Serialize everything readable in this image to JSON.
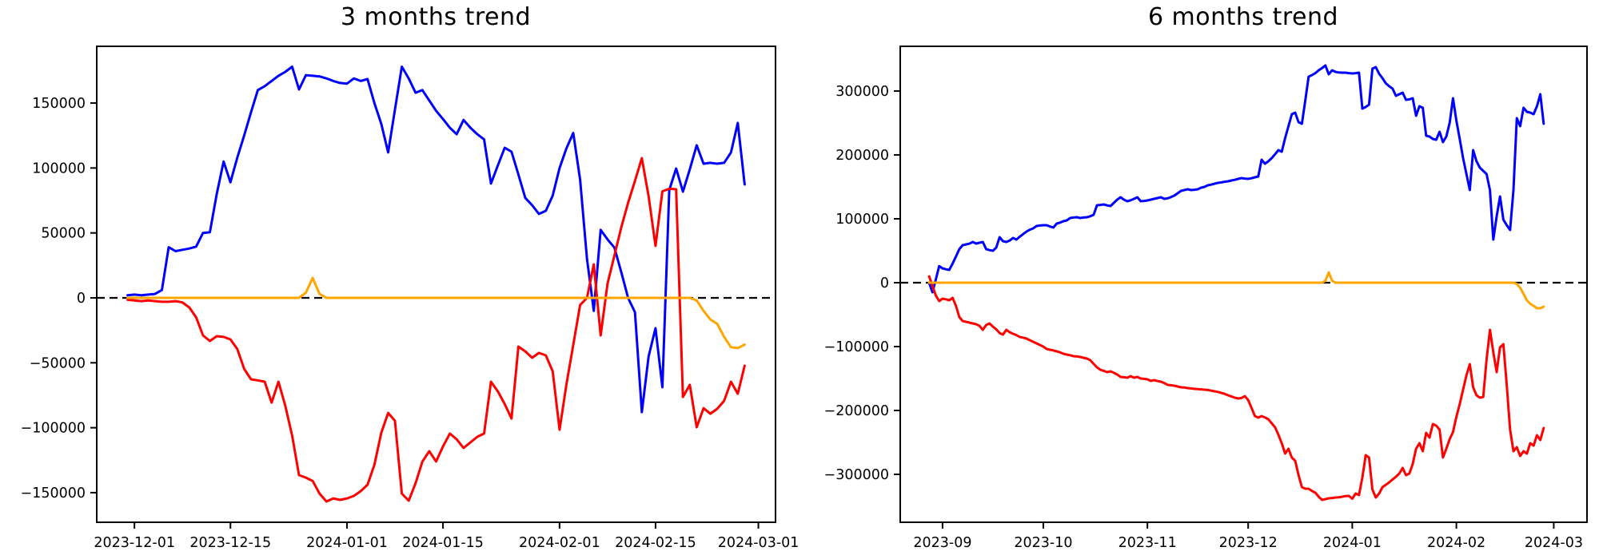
{
  "figure": {
    "background": "#ffffff"
  },
  "chart_data": [
    {
      "title": "3 months trend",
      "type": "line",
      "start_date": "2023-11-30",
      "points_interval_days": 1,
      "grid": false,
      "legend": "none",
      "zero_line": {
        "show": true,
        "color": "#000000",
        "style": "dashed"
      },
      "xlim_days": [
        -4.5,
        94.5
      ],
      "ylim": [
        -172800,
        193700
      ],
      "x_ticks": [
        {
          "label": "2023-12-01",
          "day": 1
        },
        {
          "label": "2023-12-15",
          "day": 15
        },
        {
          "label": "2024-01-01",
          "day": 32
        },
        {
          "label": "2024-01-15",
          "day": 46
        },
        {
          "label": "2024-02-01",
          "day": 63
        },
        {
          "label": "2024-02-15",
          "day": 77
        },
        {
          "label": "2024-03-01",
          "day": 92
        }
      ],
      "y_ticks": [
        {
          "label": "150000",
          "value": 150000
        },
        {
          "label": "100000",
          "value": 100000
        },
        {
          "label": "50000",
          "value": 50000
        },
        {
          "label": "0",
          "value": 0
        },
        {
          "label": "−50000",
          "value": -50000
        },
        {
          "label": "−100000",
          "value": -100000
        },
        {
          "label": "−150000",
          "value": -150000
        }
      ],
      "series": [
        {
          "name": "blue-line",
          "color": "#0000ff",
          "values": [
            2000,
            2500,
            2000,
            2500,
            3000,
            6000,
            39000,
            36000,
            37000,
            38000,
            39500,
            50000,
            50500,
            80000,
            105000,
            89000,
            108000,
            125000,
            143000,
            160000,
            163000,
            167000,
            171000,
            174000,
            178000,
            160500,
            171500,
            171000,
            170500,
            169000,
            167000,
            165500,
            165000,
            169000,
            167000,
            168500,
            150000,
            134000,
            112000,
            145000,
            178000,
            169000,
            158000,
            160000,
            152000,
            144000,
            137700,
            131000,
            126000,
            137000,
            131000,
            126000,
            122000,
            88000,
            102000,
            115600,
            112500,
            95000,
            77000,
            71300,
            64600,
            67000,
            78700,
            100000,
            115000,
            127000,
            91000,
            30000,
            -10000,
            52300,
            45000,
            38700,
            20000,
            0,
            -11100,
            -88000,
            -45000,
            -23400,
            -68900,
            83000,
            99600,
            81800,
            99000,
            117500,
            103300,
            104000,
            103300,
            104000,
            112000,
            134700,
            87300
          ]
        },
        {
          "name": "red-line",
          "color": "#ff0000",
          "values": [
            -1500,
            -2000,
            -2500,
            -2000,
            -2500,
            -3000,
            -3000,
            -2500,
            -3500,
            -7400,
            -15000,
            -28900,
            -33200,
            -29500,
            -30100,
            -32000,
            -39400,
            -54700,
            -62700,
            -63500,
            -64600,
            -80600,
            -64600,
            -83000,
            -106000,
            -136500,
            -138400,
            -141000,
            -150700,
            -156800,
            -154400,
            -155600,
            -154400,
            -152500,
            -148800,
            -143900,
            -128500,
            -103900,
            -88600,
            -94700,
            -150700,
            -156200,
            -142700,
            -126100,
            -118100,
            -126000,
            -114400,
            -104500,
            -108900,
            -115600,
            -111300,
            -107000,
            -104500,
            -64600,
            -72000,
            -81800,
            -92900,
            -37500,
            -41200,
            -46100,
            -42400,
            -44300,
            -56600,
            -101500,
            -67000,
            -36300,
            -5500,
            0,
            25800,
            -28900,
            11000,
            32600,
            54100,
            73200,
            90000,
            107600,
            78100,
            40000,
            82000,
            84000,
            83600,
            -76300,
            -67000,
            -99600,
            -85000,
            -89200,
            -85400,
            -79300,
            -64600,
            -73800,
            -52300
          ]
        },
        {
          "name": "orange-line",
          "color": "#ffa500",
          "values": [
            0,
            0,
            0,
            0,
            0,
            0,
            0,
            0,
            0,
            0,
            0,
            0,
            0,
            0,
            0,
            0,
            0,
            0,
            0,
            0,
            0,
            0,
            0,
            0,
            0,
            0,
            4000,
            15400,
            3000,
            0,
            0,
            0,
            0,
            0,
            0,
            0,
            0,
            0,
            0,
            0,
            0,
            0,
            0,
            0,
            0,
            0,
            0,
            0,
            0,
            0,
            0,
            0,
            0,
            0,
            0,
            0,
            0,
            0,
            0,
            0,
            0,
            0,
            0,
            0,
            0,
            0,
            0,
            0,
            0,
            0,
            0,
            0,
            0,
            0,
            0,
            0,
            0,
            0,
            0,
            0,
            0,
            0,
            0,
            -2000,
            -10000,
            -16600,
            -20000,
            -30000,
            -38000,
            -38700,
            -36000
          ]
        }
      ]
    },
    {
      "title": "6 months trend",
      "type": "line",
      "start_date": "2023-08-28",
      "points_interval_days": 1,
      "grid": false,
      "legend": "none",
      "zero_line": {
        "show": true,
        "color": "#000000",
        "style": "dashed"
      },
      "xlim_days": [
        -8.6,
        195.9
      ],
      "ylim": [
        -375000,
        370000
      ],
      "x_ticks": [
        {
          "label": "2023-09",
          "day": 4
        },
        {
          "label": "2023-10",
          "day": 34
        },
        {
          "label": "2023-11",
          "day": 65
        },
        {
          "label": "2023-12",
          "day": 95
        },
        {
          "label": "2024-01",
          "day": 126
        },
        {
          "label": "2024-02",
          "day": 157
        },
        {
          "label": "2024-03",
          "day": 186
        }
      ],
      "y_ticks": [
        {
          "label": "300000",
          "value": 300000
        },
        {
          "label": "200000",
          "value": 200000
        },
        {
          "label": "100000",
          "value": 100000
        },
        {
          "label": "0",
          "value": 0
        },
        {
          "label": "−100000",
          "value": -100000
        },
        {
          "label": "−200000",
          "value": -200000
        },
        {
          "label": "−300000",
          "value": -300000
        }
      ],
      "series": [
        {
          "name": "blue-line",
          "color": "#0000ff",
          "values": [
            0,
            -15000,
            5000,
            26000,
            22500,
            21000,
            20000,
            30000,
            41000,
            52500,
            58750,
            60000,
            61000,
            63750,
            61250,
            62500,
            63750,
            52500,
            51000,
            50000,
            55000,
            71250,
            65000,
            63750,
            66000,
            70000,
            67500,
            72000,
            76000,
            80000,
            83000,
            85000,
            88750,
            89500,
            90000,
            90000,
            88000,
            86250,
            92500,
            94000,
            96250,
            97500,
            101250,
            102000,
            102500,
            101250,
            102000,
            102500,
            104000,
            106250,
            121250,
            121800,
            122500,
            121000,
            120000,
            125000,
            130000,
            133750,
            130000,
            127500,
            129000,
            131250,
            133750,
            127500,
            128000,
            128750,
            130000,
            131250,
            132500,
            133750,
            131250,
            132000,
            134000,
            136250,
            140000,
            143750,
            145000,
            146250,
            145000,
            145500,
            146250,
            148750,
            150000,
            152500,
            153500,
            155000,
            156250,
            157000,
            158000,
            158750,
            160000,
            161000,
            162500,
            163750,
            163000,
            162500,
            163500,
            165000,
            166250,
            192500,
            186250,
            190000,
            195000,
            201000,
            207500,
            205000,
            226250,
            245000,
            263750,
            266250,
            251250,
            248750,
            285000,
            322500,
            325000,
            328000,
            332500,
            336000,
            340000,
            326250,
            332500,
            330000,
            329000,
            328750,
            328750,
            328000,
            327500,
            328000,
            328750,
            272500,
            275000,
            278750,
            335000,
            337500,
            327000,
            320000,
            312000,
            307500,
            303750,
            292500,
            295000,
            297500,
            286250,
            287000,
            288750,
            261250,
            276250,
            273750,
            230000,
            228750,
            225000,
            223750,
            236250,
            220000,
            228750,
            250000,
            288750,
            253750,
            225000,
            195000,
            170000,
            145000,
            207500,
            190000,
            180000,
            175000,
            170000,
            145000,
            67500,
            103750,
            135000,
            98750,
            90000,
            82500,
            145000,
            257500,
            245000,
            273750,
            267500,
            266250,
            263750,
            276250,
            295000,
            248750
          ]
        },
        {
          "name": "red-line",
          "color": "#ff0000",
          "values": [
            10000,
            -5000,
            -20000,
            -28750,
            -25000,
            -26000,
            -27500,
            -23750,
            -36250,
            -53750,
            -60000,
            -61250,
            -62500,
            -63750,
            -65000,
            -67500,
            -73750,
            -66250,
            -63750,
            -68750,
            -73000,
            -78750,
            -81250,
            -73750,
            -77500,
            -80000,
            -82000,
            -85000,
            -86000,
            -87500,
            -90000,
            -92500,
            -95000,
            -97500,
            -100000,
            -103750,
            -105000,
            -106000,
            -107500,
            -109000,
            -111250,
            -112500,
            -113500,
            -115000,
            -115500,
            -116250,
            -117500,
            -118750,
            -121250,
            -127000,
            -132500,
            -136250,
            -138000,
            -140000,
            -138750,
            -141000,
            -143750,
            -147500,
            -148000,
            -148750,
            -146250,
            -148750,
            -147500,
            -150000,
            -150500,
            -151250,
            -153750,
            -152500,
            -154000,
            -155000,
            -157000,
            -160000,
            -160500,
            -161250,
            -162500,
            -163750,
            -164000,
            -165000,
            -165500,
            -166250,
            -166500,
            -167000,
            -167500,
            -168000,
            -169000,
            -170000,
            -171000,
            -172500,
            -174000,
            -176250,
            -178000,
            -180000,
            -181250,
            -180500,
            -177500,
            -183750,
            -196000,
            -208750,
            -211250,
            -208750,
            -211000,
            -213750,
            -220000,
            -226250,
            -238000,
            -251250,
            -267500,
            -260000,
            -273750,
            -278750,
            -301250,
            -320000,
            -322500,
            -322500,
            -326000,
            -328750,
            -335000,
            -340000,
            -338750,
            -337500,
            -337000,
            -336250,
            -336000,
            -335000,
            -334000,
            -333750,
            -338000,
            -330000,
            -332500,
            -305000,
            -270000,
            -273750,
            -323750,
            -336250,
            -330000,
            -320000,
            -316250,
            -312500,
            -308000,
            -303750,
            -298750,
            -290000,
            -301250,
            -298750,
            -283750,
            -260000,
            -251250,
            -263750,
            -235000,
            -242500,
            -221250,
            -223750,
            -230000,
            -273750,
            -260000,
            -245000,
            -233750,
            -210000,
            -190000,
            -167500,
            -145000,
            -127500,
            -163750,
            -176250,
            -180000,
            -179000,
            -120000,
            -73750,
            -108750,
            -140000,
            -101250,
            -96250,
            -160000,
            -230000,
            -263750,
            -257500,
            -271250,
            -263750,
            -267500,
            -251250,
            -255000,
            -238750,
            -246250,
            -227500
          ]
        },
        {
          "name": "orange-line",
          "color": "#ffa500",
          "values": [
            0,
            0,
            0,
            0,
            0,
            0,
            0,
            0,
            0,
            0,
            0,
            0,
            0,
            0,
            0,
            0,
            0,
            0,
            0,
            0,
            0,
            0,
            0,
            0,
            0,
            0,
            0,
            0,
            0,
            0,
            0,
            0,
            0,
            0,
            0,
            0,
            0,
            0,
            0,
            0,
            0,
            0,
            0,
            0,
            0,
            0,
            0,
            0,
            0,
            0,
            0,
            0,
            0,
            0,
            0,
            0,
            0,
            0,
            0,
            0,
            0,
            0,
            0,
            0,
            0,
            0,
            0,
            0,
            0,
            0,
            0,
            0,
            0,
            0,
            0,
            0,
            0,
            0,
            0,
            0,
            0,
            0,
            0,
            0,
            0,
            0,
            0,
            0,
            0,
            0,
            0,
            0,
            0,
            0,
            0,
            0,
            0,
            0,
            0,
            0,
            0,
            0,
            0,
            0,
            0,
            0,
            0,
            0,
            0,
            0,
            0,
            0,
            0,
            0,
            0,
            0,
            0,
            0,
            3000,
            16250,
            3000,
            0,
            0,
            0,
            0,
            0,
            0,
            0,
            0,
            0,
            0,
            0,
            0,
            0,
            0,
            0,
            0,
            0,
            0,
            0,
            0,
            0,
            0,
            0,
            0,
            0,
            0,
            0,
            0,
            0,
            0,
            0,
            0,
            0,
            0,
            0,
            0,
            0,
            0,
            0,
            0,
            0,
            0,
            0,
            0,
            0,
            0,
            0,
            0,
            0,
            0,
            0,
            0,
            0,
            0,
            -2000,
            -8000,
            -17500,
            -27500,
            -33000,
            -36250,
            -40000,
            -40000,
            -37500
          ]
        }
      ]
    }
  ]
}
